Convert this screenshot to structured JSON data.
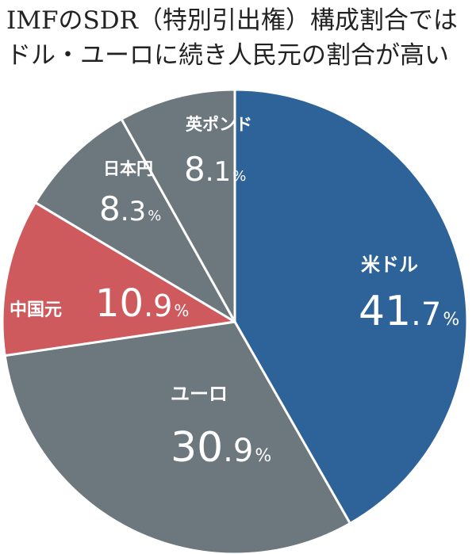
{
  "title_lines": [
    "IMFのSDR（特別引出権）構成割合では",
    "ドル・ユーロに続き人民元の割合が高い"
  ],
  "chart_data": {
    "type": "pie",
    "title": "IMFのSDR（特別引出権）構成割合ではドル・ユーロに続き人民元の割合が高い",
    "unit": "%",
    "slices": [
      {
        "label": "米ドル",
        "value": 41.7,
        "int": "41",
        "dec": ".7",
        "color": "#2e6399"
      },
      {
        "label": "ユーロ",
        "value": 30.9,
        "int": "30",
        "dec": ".9",
        "color": "#6d777e"
      },
      {
        "label": "中国元",
        "value": 10.9,
        "int": "10",
        "dec": ".9",
        "color": "#cf5a5e"
      },
      {
        "label": "日本円",
        "value": 8.3,
        "int": "8",
        "dec": ".3",
        "color": "#6d777e"
      },
      {
        "label": "英ポンド",
        "value": 8.1,
        "int": "8",
        "dec": ".1",
        "color": "#6d777e"
      }
    ]
  }
}
